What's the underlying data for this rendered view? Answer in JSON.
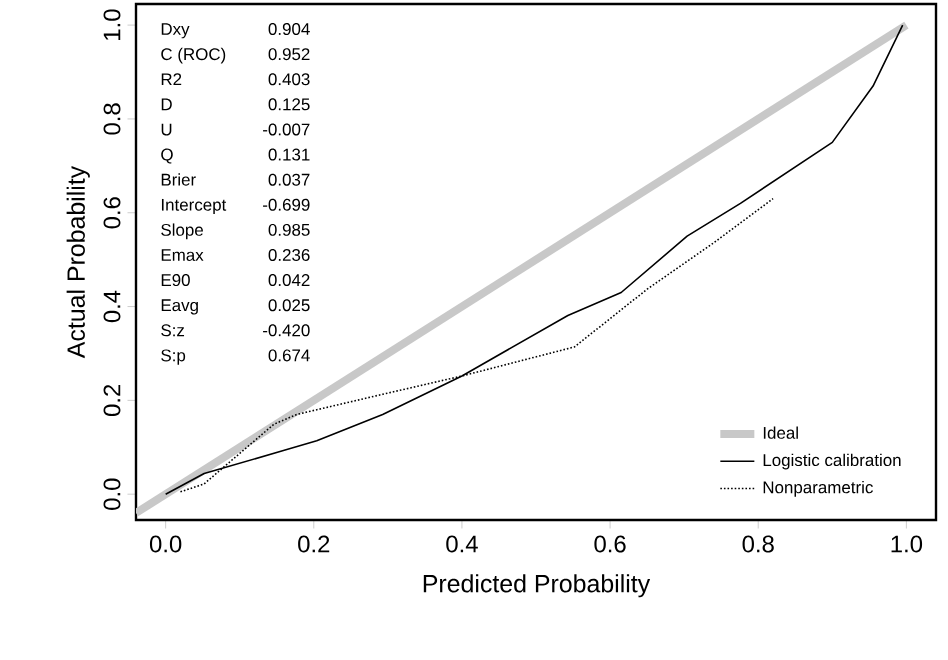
{
  "chart_data": {
    "type": "line",
    "xlabel": "Predicted Probability",
    "ylabel": "Actual Probability",
    "xlim": [
      -0.04,
      1.04
    ],
    "ylim": [
      -0.055,
      1.045
    ],
    "xticks": [
      {
        "value": 0,
        "label": "0.0"
      },
      0.2,
      0.4,
      0.6,
      0.8,
      {
        "value": 1,
        "label": "1.0"
      }
    ],
    "yticks": [
      {
        "value": 0,
        "label": "0.0"
      },
      0.2,
      0.4,
      0.6,
      0.8,
      {
        "value": 1,
        "label": "1.0"
      }
    ],
    "legend": "bottom right",
    "grid": false,
    "annotations": [
      "Dxy",
      "0.904",
      "C (ROC)",
      "0.952",
      "R2",
      "0.403",
      "D",
      "0.125",
      "U",
      "-0.007",
      "Q",
      "0.131",
      "Brier",
      "0.037",
      "Intercept",
      "-0.699",
      "Slope",
      "0.985",
      "Emax",
      "0.236",
      "E90",
      "0.042",
      "Eavg",
      "0.025",
      "S:z",
      "-0.420",
      "S:p",
      "0.674"
    ],
    "series": [
      {
        "name": "Ideal",
        "color": "#c8c8c8",
        "line_style": "solid",
        "x": [
          -0.04,
          1.0
        ],
        "values": [
          -0.04,
          1.0
        ]
      },
      {
        "name": "Logistic calibration",
        "color": "#000000",
        "line_style": "solid",
        "x": [
          0.0,
          0.052,
          0.159,
          0.204,
          0.293,
          0.4,
          0.543,
          0.615,
          0.704,
          0.776,
          0.9,
          0.955,
          0.995
        ],
        "values": [
          0.0,
          0.044,
          0.093,
          0.114,
          0.17,
          0.252,
          0.381,
          0.43,
          0.55,
          0.62,
          0.75,
          0.87,
          1.0
        ]
      },
      {
        "name": "Nonparametric",
        "color": "#000000",
        "line_style": "dotted",
        "x": [
          0.02,
          0.052,
          0.146,
          0.177,
          0.293,
          0.4,
          0.552,
          0.65,
          0.74,
          0.82
        ],
        "values": [
          0.005,
          0.022,
          0.149,
          0.17,
          0.213,
          0.252,
          0.314,
          0.437,
          0.536,
          0.63
        ]
      }
    ]
  }
}
